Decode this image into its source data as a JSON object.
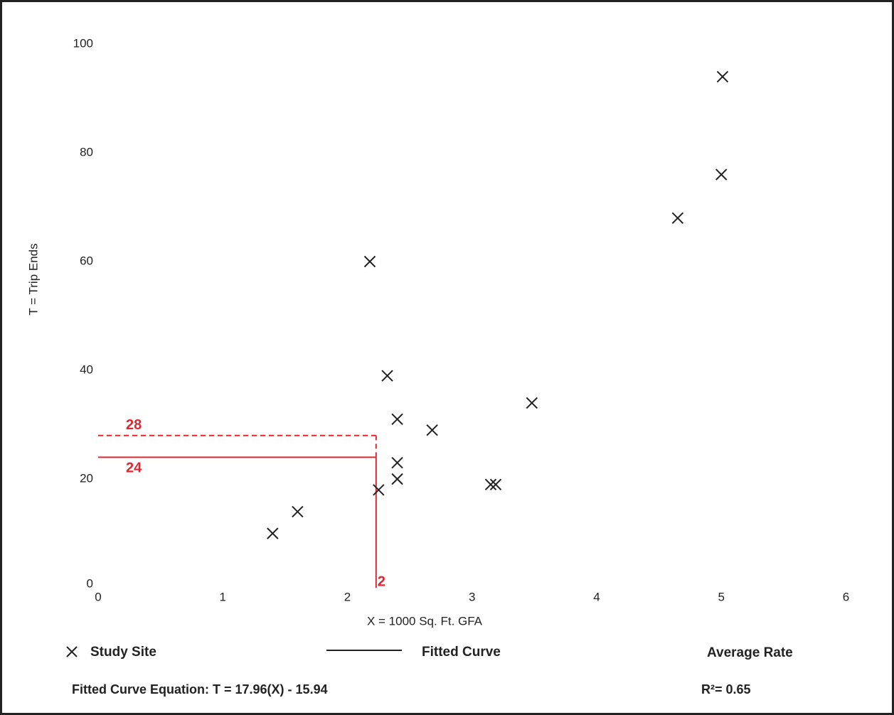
{
  "chart_data": {
    "type": "scatter",
    "x_label": "X = 1000 Sq. Ft. GFA",
    "y_label": "T = Trip Ends",
    "xlim": [
      0,
      6.3
    ],
    "ylim": [
      0,
      100
    ],
    "xticks": [
      0,
      1,
      2,
      3,
      4,
      5,
      6
    ],
    "yticks": [
      0,
      20,
      40,
      60,
      80,
      100
    ],
    "series": [
      {
        "name": "Study Site",
        "color": "#222222",
        "x": [
          1.4,
          1.6,
          2.18,
          2.25,
          2.32,
          2.4,
          2.4,
          2.4,
          2.68,
          3.15,
          3.19,
          3.48,
          4.65,
          5.0,
          5.01
        ],
        "values": [
          10,
          14,
          60,
          18,
          39,
          31,
          23,
          20,
          29,
          19,
          19,
          34,
          68,
          76,
          94
        ]
      }
    ],
    "legend": {
      "fitted_curve": "Fitted Curve",
      "average_rate": "Average Rate"
    },
    "equation": "Fitted Curve Equation: T = 17.96(X) - 15.94",
    "r_squared": "R²= 0.65",
    "estimate": {
      "x": {
        "value": 2.23,
        "label": "2"
      },
      "fitted": 24,
      "average": 28,
      "color": "#e0262e"
    }
  }
}
